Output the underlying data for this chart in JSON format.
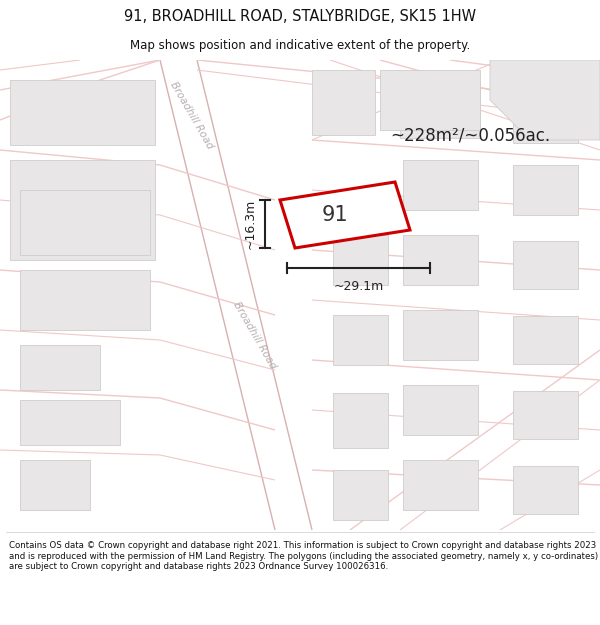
{
  "title": "91, BROADHILL ROAD, STALYBRIDGE, SK15 1HW",
  "subtitle": "Map shows position and indicative extent of the property.",
  "area_text": "~228m²/~0.056ac.",
  "width_label": "~29.1m",
  "height_label": "~16.3m",
  "plot_number": "91",
  "footer": "Contains OS data © Crown copyright and database right 2021. This information is subject to Crown copyright and database rights 2023 and is reproduced with the permission of HM Land Registry. The polygons (including the associated geometry, namely x, y co-ordinates) are subject to Crown copyright and database rights 2023 Ordnance Survey 100026316.",
  "map_bg": "#f8f7f7",
  "road_color": "#f0c8c8",
  "building_color": "#e8e6e6",
  "building_edge": "#d0cccc",
  "plot_outline_color": "#cc0000",
  "title_color": "#111111",
  "footer_color": "#111111",
  "road_label_color": "#b8b0b0",
  "dim_color": "#222222",
  "area_text_color": "#222222"
}
